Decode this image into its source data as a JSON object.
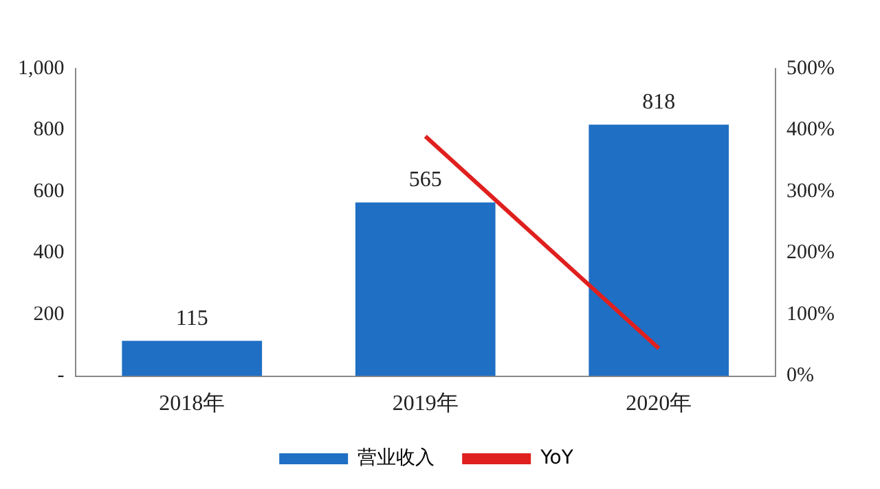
{
  "chart_data": {
    "type": "bar",
    "categories": [
      "2018年",
      "2019年",
      "2020年"
    ],
    "series": [
      {
        "name": "营业收入",
        "color": "#1f6fc4",
        "values": [
          115,
          565,
          818
        ],
        "value_labels": [
          "115",
          "565",
          "818"
        ]
      },
      {
        "name": "YoY",
        "type": "line",
        "color": "#e0201e",
        "axis": "y2",
        "values": [
          null,
          390,
          45
        ]
      }
    ],
    "ylim": [
      0,
      1000
    ],
    "yticks": [
      {
        "value": 0,
        "label": "-"
      },
      200,
      400,
      600,
      800,
      {
        "value": 1000,
        "label": "1,000"
      }
    ],
    "y2lim": [
      0,
      500
    ],
    "y2ticks": [
      {
        "value": 0,
        "label": "0%"
      },
      {
        "value": 100,
        "label": "100%"
      },
      {
        "value": 200,
        "label": "200%"
      },
      {
        "value": 300,
        "label": "300%"
      },
      {
        "value": 400,
        "label": "400%"
      },
      {
        "value": 500,
        "label": "500%"
      }
    ],
    "grid": false,
    "legend": "bottom",
    "marker": "none"
  }
}
